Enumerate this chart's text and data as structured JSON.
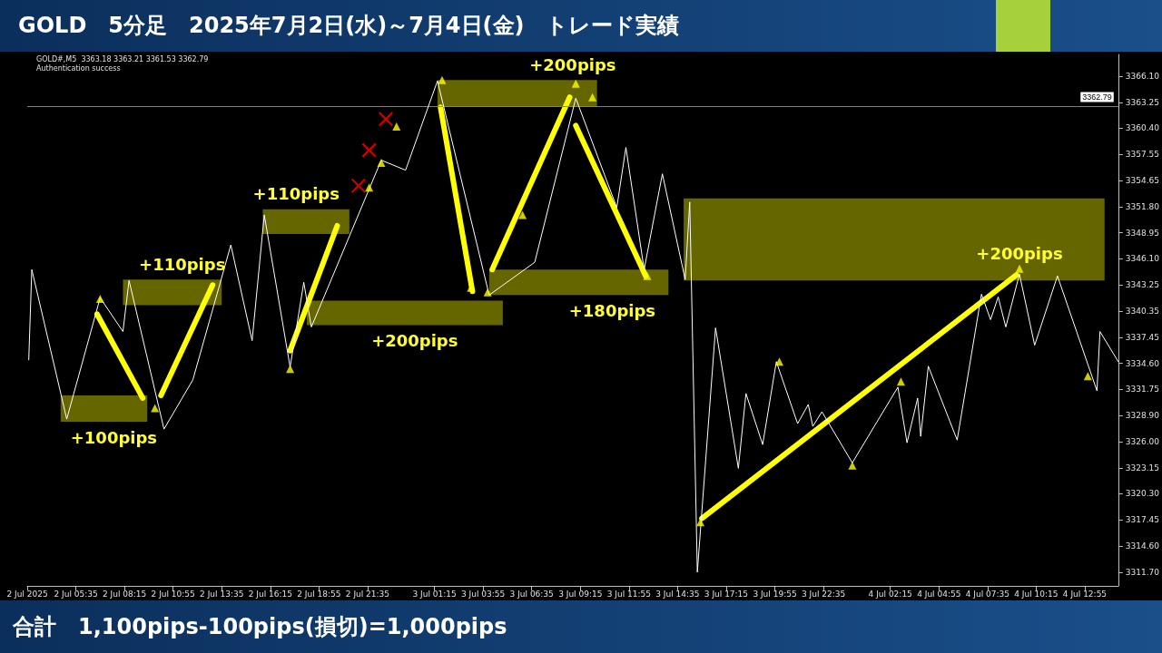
{
  "chart_data": {
    "type": "line",
    "title": "GOLD　5分足　2025年7月2日(水)～7月4日(金)　トレード実績",
    "annotations": [
      "GOLD#,M5  3363.18 3363.21 3361.53 3362.79",
      "Authentication success",
      {
        "text": "+100pips",
        "x": "2025-07-02T07:40",
        "y": 3328.2
      },
      {
        "text": "+110pips",
        "x": "2025-07-02T11:25",
        "y": 3343.8
      },
      {
        "text": "+110pips",
        "x": "2025-07-02T17:40",
        "y": 3351.5
      },
      {
        "text": "+200pips",
        "x": "2025-07-03T00:10",
        "y": 3338.8
      },
      {
        "text": "+200pips",
        "x": "2025-07-03T08:50",
        "y": 3365.7
      },
      {
        "text": "+180pips",
        "x": "2025-07-03T11:00",
        "y": 3342.1
      },
      {
        "text": "+200pips",
        "x": "2025-07-04T09:20",
        "y": 3345.0
      },
      "合計　1,100pips-100pips(損切)=1,000pips"
    ],
    "xlim": [
      "2025-07-02T02:55",
      "2025-07-04T14:45"
    ],
    "xticks": [
      {
        "value": "2025-07-02T02:55",
        "label": "2 Jul 2025"
      },
      {
        "value": "2025-07-02T05:35",
        "label": "2 Jul 05:35"
      },
      {
        "value": "2025-07-02T08:15",
        "label": "2 Jul 08:15"
      },
      {
        "value": "2025-07-02T10:55",
        "label": "2 Jul 10:55"
      },
      {
        "value": "2025-07-02T13:35",
        "label": "2 Jul 13:35"
      },
      {
        "value": "2025-07-02T16:15",
        "label": "2 Jul 16:15"
      },
      {
        "value": "2025-07-02T18:55",
        "label": "2 Jul 18:55"
      },
      {
        "value": "2025-07-02T21:35",
        "label": "2 Jul 21:35"
      },
      {
        "value": "2025-07-03T01:15",
        "label": "3 Jul 01:15"
      },
      {
        "value": "2025-07-03T03:55",
        "label": "3 Jul 03:55"
      },
      {
        "value": "2025-07-03T06:35",
        "label": "3 Jul 06:35"
      },
      {
        "value": "2025-07-03T09:15",
        "label": "3 Jul 09:15"
      },
      {
        "value": "2025-07-03T11:55",
        "label": "3 Jul 11:55"
      },
      {
        "value": "2025-07-03T14:35",
        "label": "3 Jul 14:35"
      },
      {
        "value": "2025-07-03T17:15",
        "label": "3 Jul 17:15"
      },
      {
        "value": "2025-07-03T19:55",
        "label": "3 Jul 19:55"
      },
      {
        "value": "2025-07-03T22:35",
        "label": "3 Jul 22:35"
      },
      {
        "value": "2025-07-04T02:15",
        "label": "4 Jul 02:15"
      },
      {
        "value": "2025-07-04T04:55",
        "label": "4 Jul 04:55"
      },
      {
        "value": "2025-07-04T07:35",
        "label": "4 Jul 07:35"
      },
      {
        "value": "2025-07-04T10:15",
        "label": "4 Jul 10:15"
      },
      {
        "value": "2025-07-04T12:55",
        "label": "4 Jul 12:55"
      }
    ],
    "ylim": [
      3310.2,
      3368.5
    ],
    "yticks": [
      {
        "value": 3311.7,
        "label": "3311.70"
      },
      {
        "value": 3314.6,
        "label": "3314.60"
      },
      {
        "value": 3317.45,
        "label": "3317.45"
      },
      {
        "value": 3320.3,
        "label": "3320.30"
      },
      {
        "value": 3323.15,
        "label": "3323.15"
      },
      {
        "value": 3326,
        "label": "3326.00"
      },
      {
        "value": 3328.9,
        "label": "3328.90"
      },
      {
        "value": 3331.75,
        "label": "3331.75"
      },
      {
        "value": 3334.6,
        "label": "3334.60"
      },
      {
        "value": 3337.45,
        "label": "3337.45"
      },
      {
        "value": 3340.35,
        "label": "3340.35"
      },
      {
        "value": 3343.25,
        "label": "3343.25"
      },
      {
        "value": 3346.1,
        "label": "3346.10"
      },
      {
        "value": 3348.95,
        "label": "3348.95"
      },
      {
        "value": 3351.8,
        "label": "3351.80"
      },
      {
        "value": 3354.65,
        "label": "3354.65"
      },
      {
        "value": 3357.55,
        "label": "3357.55"
      },
      {
        "value": 3360.4,
        "label": "3360.40"
      },
      {
        "value": 3363.25,
        "label": "3363.25"
      },
      {
        "value": 3366.1,
        "label": "3366.10"
      }
    ],
    "ref_lines": [
      {
        "axis": "y",
        "value": 3362.79,
        "label": "3362.79",
        "color": "#808080"
      }
    ],
    "grid": false,
    "marker": "none",
    "line_style": "solid",
    "series": [
      {
        "color": "#ffffff",
        "x": [
          "2025-07-02T03:00",
          "2025-07-02T03:10",
          "2025-07-02T05:05",
          "2025-07-02T06:55",
          "2025-07-02T08:10",
          "2025-07-02T08:30",
          "2025-07-02T10:25",
          "2025-07-02T12:00",
          "2025-07-02T14:05",
          "2025-07-02T15:15",
          "2025-07-02T15:55",
          "2025-07-02T17:20",
          "2025-07-02T18:05",
          "2025-07-02T18:30",
          "2025-07-02T22:20",
          "2025-07-02T23:40",
          "2025-07-03T01:25",
          "2025-07-03T04:15",
          "2025-07-03T06:45",
          "2025-07-03T09:00",
          "2025-07-03T11:15",
          "2025-07-03T11:45",
          "2025-07-03T12:45",
          "2025-07-03T13:45",
          "2025-07-03T15:00",
          "2025-07-03T15:15",
          "2025-07-03T15:40",
          "2025-07-03T16:40",
          "2025-07-03T17:55",
          "2025-07-03T18:20",
          "2025-07-03T19:15",
          "2025-07-03T20:00",
          "2025-07-03T21:10",
          "2025-07-03T21:45",
          "2025-07-03T22:00",
          "2025-07-03T22:30",
          "2025-07-04T00:10",
          "2025-07-04T02:40",
          "2025-07-04T03:10",
          "2025-07-04T03:45",
          "2025-07-04T03:55",
          "2025-07-04T04:20",
          "2025-07-04T05:55",
          "2025-07-04T07:15",
          "2025-07-04T07:45",
          "2025-07-04T08:10",
          "2025-07-04T08:35",
          "2025-07-04T09:20",
          "2025-07-04T10:10",
          "2025-07-04T11:25",
          "2025-07-04T13:35",
          "2025-07-04T13:45",
          "2025-07-04T14:45"
        ],
        "values": [
          3335.0,
          3344.9,
          3328.5,
          3341.8,
          3338.1,
          3343.7,
          3327.4,
          3332.8,
          3347.6,
          3337.1,
          3350.9,
          3334.2,
          3343.5,
          3338.6,
          3356.9,
          3355.8,
          3365.6,
          3342.1,
          3345.7,
          3363.7,
          3351.7,
          3358.3,
          3344.9,
          3355.4,
          3343.8,
          3352.3,
          3311.7,
          3338.5,
          3323.1,
          3331.3,
          3325.7,
          3334.8,
          3328.0,
          3330.1,
          3327.7,
          3329.3,
          3323.7,
          3332.0,
          3325.9,
          3330.8,
          3326.6,
          3334.3,
          3326.2,
          3342.2,
          3339.4,
          3341.9,
          3338.6,
          3344.4,
          3336.6,
          3344.2,
          3331.6,
          3338.1,
          3334.8
        ]
      },
      {
        "type": "area",
        "color": "#666600",
        "x": [
          "2025-07-02T04:45",
          "2025-07-02T09:30"
        ],
        "lower": [
          3328.2,
          3328.2
        ],
        "upper": [
          3331.1,
          3331.1
        ],
        "values": [
          null,
          null
        ]
      },
      {
        "type": "area",
        "color": "#666600",
        "x": [
          "2025-07-02T08:10",
          "2025-07-02T13:35"
        ],
        "lower": [
          3341.0,
          3341.0
        ],
        "upper": [
          3343.8,
          3343.8
        ],
        "values": [
          null,
          null
        ]
      },
      {
        "type": "area",
        "color": "#666600",
        "x": [
          "2025-07-02T15:50",
          "2025-07-02T20:35"
        ],
        "lower": [
          3348.8,
          3348.8
        ],
        "upper": [
          3351.5,
          3351.5
        ],
        "values": [
          null,
          null
        ]
      },
      {
        "type": "area",
        "color": "#666600",
        "x": [
          "2025-07-02T18:15",
          "2025-07-03T05:00"
        ],
        "lower": [
          3338.8,
          3338.8
        ],
        "upper": [
          3341.5,
          3341.5
        ],
        "values": [
          null,
          null
        ]
      },
      {
        "type": "area",
        "color": "#666600",
        "x": [
          "2025-07-03T01:25",
          "2025-07-03T10:10"
        ],
        "lower": [
          3362.8,
          3362.8
        ],
        "upper": [
          3365.7,
          3365.7
        ],
        "values": [
          null,
          null
        ]
      },
      {
        "type": "area",
        "color": "#666600",
        "x": [
          "2025-07-03T04:15",
          "2025-07-03T14:05"
        ],
        "lower": [
          3342.1,
          3342.1
        ],
        "upper": [
          3344.9,
          3344.9
        ],
        "values": [
          null,
          null
        ]
      },
      {
        "type": "area",
        "color": "#666600",
        "x": [
          "2025-07-03T14:55",
          "2025-07-04T14:00"
        ],
        "lower": [
          3343.7,
          3343.7
        ],
        "upper": [
          3352.7,
          3352.7
        ],
        "values": [
          null,
          null
        ]
      },
      {
        "type": "line",
        "color": "#ffff00",
        "x": [
          "2025-07-02T06:45",
          "2025-07-02T09:15"
        ],
        "values": [
          3340.0,
          3330.8
        ]
      },
      {
        "type": "line",
        "color": "#ffff00",
        "x": [
          "2025-07-02T10:15",
          "2025-07-02T13:05"
        ],
        "values": [
          3331.1,
          3343.2
        ]
      },
      {
        "type": "line",
        "color": "#ffff00",
        "x": [
          "2025-07-02T17:20",
          "2025-07-02T19:55"
        ],
        "values": [
          3336.0,
          3349.7
        ]
      },
      {
        "type": "line",
        "color": "#ffff00",
        "x": [
          "2025-07-03T01:35",
          "2025-07-03T03:20"
        ],
        "values": [
          3362.7,
          3342.5
        ]
      },
      {
        "type": "line",
        "color": "#ffff00",
        "x": [
          "2025-07-03T04:25",
          "2025-07-03T08:40"
        ],
        "values": [
          3344.9,
          3363.8
        ]
      },
      {
        "type": "line",
        "color": "#ffff00",
        "x": [
          "2025-07-03T09:00",
          "2025-07-03T12:50"
        ],
        "values": [
          3360.7,
          3344.2
        ]
      },
      {
        "type": "line",
        "color": "#ffff00",
        "x": [
          "2025-07-03T15:55",
          "2025-07-04T09:10"
        ],
        "values": [
          3317.6,
          3344.3
        ]
      },
      {
        "type": "scatter",
        "color": "#ff0000",
        "marker": "cross",
        "x": [
          "2025-07-02T21:05",
          "2025-07-02T21:40",
          "2025-07-02T22:35"
        ],
        "values": [
          3354.1,
          3358.0,
          3361.4
        ]
      },
      {
        "type": "scatter",
        "color": "#ffff00",
        "marker": "triangle",
        "x": [
          "2025-07-02T06:55",
          "2025-07-02T21:40",
          "2025-07-02T22:20",
          "2025-07-02T23:10",
          "2025-07-03T01:40",
          "2025-07-03T06:05",
          "2025-07-03T09:00",
          "2025-07-03T09:55",
          "2025-07-03T20:10",
          "2025-07-04T02:50",
          "2025-07-04T09:20"
        ],
        "values": [
          3341.7,
          3353.9,
          3356.6,
          3360.6,
          3365.7,
          3350.9,
          3365.3,
          3363.8,
          3334.8,
          3332.6,
          3345.0
        ]
      },
      {
        "type": "scatter",
        "color": "#ffff00",
        "marker": "triangle",
        "x": [
          "2025-07-02T09:55",
          "2025-07-02T17:20",
          "2025-07-03T03:15",
          "2025-07-03T04:10",
          "2025-07-03T12:55",
          "2025-07-03T15:50",
          "2025-07-04T00:10",
          "2025-07-04T13:05"
        ],
        "values": [
          3329.7,
          3334.0,
          3342.9,
          3342.4,
          3344.2,
          3317.2,
          3323.4,
          3333.2
        ]
      }
    ]
  }
}
